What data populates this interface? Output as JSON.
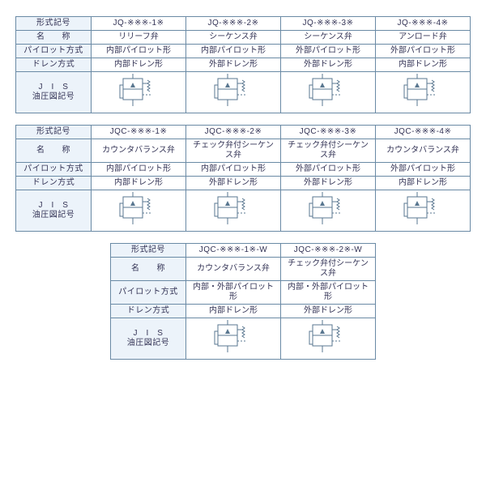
{
  "colors": {
    "border": "#6a8aa5",
    "header_bg": "#d5e3f0",
    "label_bg": "#ecf3fa",
    "cell_bg": "#ffffff",
    "text": "#335",
    "symbol_stroke": "#5a7790"
  },
  "row_headers": {
    "model": "形式記号",
    "name": "名　　称",
    "pilot": "パイロット方式",
    "drain": "ドレン方式",
    "jis": "J　I　S\n油圧図記号"
  },
  "tables": [
    {
      "cols": [
        {
          "model": "JQ-※※※-1※",
          "name": "リリーフ弁",
          "pilot": "内部パイロット形",
          "drain": "内部ドレン形"
        },
        {
          "model": "JQ-※※※-2※",
          "name": "シーケンス弁",
          "pilot": "内部パイロット形",
          "drain": "外部ドレン形"
        },
        {
          "model": "JQ-※※※-3※",
          "name": "シーケンス弁",
          "pilot": "外部パイロット形",
          "drain": "外部ドレン形"
        },
        {
          "model": "JQ-※※※-4※",
          "name": "アンロード弁",
          "pilot": "外部パイロット形",
          "drain": "内部ドレン形"
        }
      ]
    },
    {
      "cols": [
        {
          "model": "JQC-※※※-1※",
          "name": "カウンタバランス弁",
          "pilot": "内部パイロット形",
          "drain": "内部ドレン形"
        },
        {
          "model": "JQC-※※※-2※",
          "name": "チェック弁付シーケンス弁",
          "pilot": "内部パイロット形",
          "drain": "外部ドレン形"
        },
        {
          "model": "JQC-※※※-3※",
          "name": "チェック弁付シーケンス弁",
          "pilot": "外部パイロット形",
          "drain": "外部ドレン形"
        },
        {
          "model": "JQC-※※※-4※",
          "name": "カウンタバランス弁",
          "pilot": "外部パイロット形",
          "drain": "内部ドレン形"
        }
      ]
    },
    {
      "cols": [
        {
          "model": "JQC-※※※-1※-W",
          "name": "カウンタバランス弁",
          "pilot": "内部・外部パイロット形",
          "drain": "内部ドレン形"
        },
        {
          "model": "JQC-※※※-2※-W",
          "name": "チェック弁付シーケンス弁",
          "pilot": "内部・外部パイロット形",
          "drain": "外部ドレン形"
        }
      ]
    }
  ]
}
